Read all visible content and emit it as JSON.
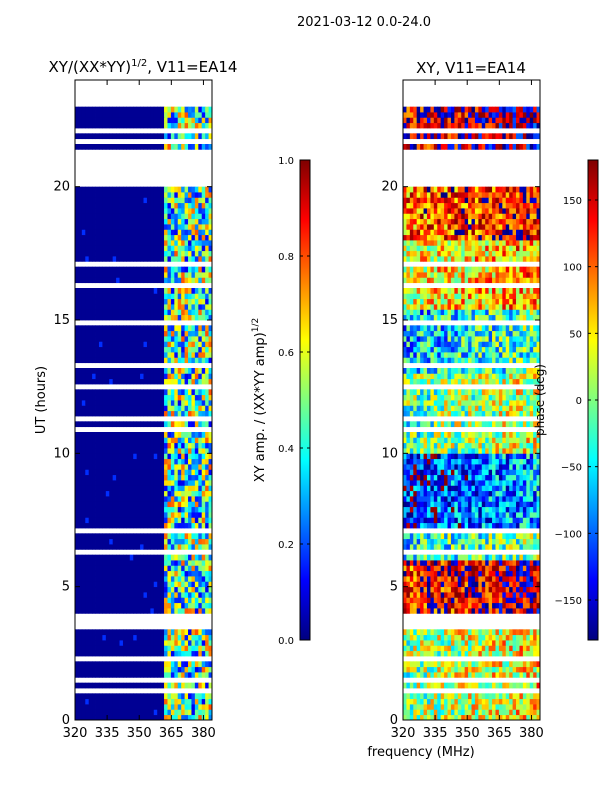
{
  "suptitle": "2021-03-12 0.0-24.0",
  "common_xlabel": "frequency (MHz)",
  "colors": {
    "background": "#ffffff",
    "axis": "#000000",
    "jet": [
      "#00007f",
      "#0000ff",
      "#007fff",
      "#00ffff",
      "#7fff7f",
      "#ffff00",
      "#ff7f00",
      "#ff0000",
      "#7f0000"
    ]
  },
  "chart_data": [
    {
      "type": "heatmap",
      "title": "XY/(XX*YY)",
      "title_exp": "1/2",
      "title_tail": ", V11=EA14",
      "xlabel": "",
      "ylabel": "UT (hours)",
      "xlim": [
        320,
        384
      ],
      "ylim": [
        0,
        24
      ],
      "x_ticks": [
        320,
        335,
        350,
        365,
        380
      ],
      "y_ticks": [
        0,
        5,
        10,
        15,
        20
      ],
      "colorbar": {
        "label": "XY amp. / (XX*YY amp)",
        "label_exp": "1/2",
        "range": [
          0.0,
          1.0
        ],
        "ticks": [
          "0.0",
          "0.2",
          "0.4",
          "0.6",
          "0.8",
          "1.0"
        ]
      },
      "rfi_free_band_mhz": [
        320,
        361
      ],
      "high_value_band_mhz": [
        361,
        384
      ],
      "typical_value_rfi_free": 0.02,
      "typical_value_band": 0.45,
      "data_gaps_ut": [
        [
          0.35,
          0.45
        ],
        [
          1.05,
          1.15
        ],
        [
          1.5,
          1.6
        ],
        [
          2.3,
          2.5
        ],
        [
          2.75,
          2.9
        ],
        [
          3.5,
          4.1
        ],
        [
          4.6,
          4.7
        ],
        [
          5.55,
          5.7
        ],
        [
          6.25,
          6.35
        ],
        [
          7.05,
          7.2
        ],
        [
          7.55,
          7.7
        ],
        [
          8.2,
          8.3
        ],
        [
          9.2,
          9.3
        ],
        [
          10.15,
          10.3
        ],
        [
          10.85,
          10.95
        ],
        [
          11.25,
          11.35
        ],
        [
          11.8,
          11.9
        ],
        [
          12.5,
          12.6
        ],
        [
          13.2,
          13.35
        ],
        [
          14.85,
          15.0
        ],
        [
          15.55,
          15.7
        ],
        [
          16.2,
          16.5
        ],
        [
          17.05,
          17.15
        ],
        [
          17.6,
          17.7
        ],
        [
          18.75,
          18.85
        ],
        [
          19.95,
          21.4
        ],
        [
          21.65,
          21.75
        ],
        [
          22.05,
          22.3
        ],
        [
          23.0,
          24.0
        ]
      ]
    },
    {
      "type": "heatmap",
      "title": "XY, V11=EA14",
      "xlabel": "frequency (MHz)",
      "ylabel": "",
      "xlim": [
        320,
        384
      ],
      "ylim": [
        0,
        24
      ],
      "x_ticks": [
        320,
        335,
        350,
        365,
        380
      ],
      "y_ticks": [
        0,
        5,
        10,
        15,
        20
      ],
      "colorbar": {
        "label": "phase (deg)",
        "range": [
          -180,
          180
        ],
        "ticks": [
          "−150",
          "−100",
          "−50",
          "0",
          "50",
          "100",
          "150"
        ]
      },
      "phase_segments_ut": [
        [
          0,
          3.5,
          30
        ],
        [
          3.5,
          6.0,
          150
        ],
        [
          6.0,
          7.2,
          -20
        ],
        [
          7.2,
          10.0,
          -100
        ],
        [
          10.0,
          13.0,
          10
        ],
        [
          13.0,
          15.5,
          -40
        ],
        [
          15.5,
          18.0,
          60
        ],
        [
          18.0,
          20.0,
          120
        ],
        [
          21.4,
          23.0,
          170
        ]
      ],
      "data_gaps_ut": [
        [
          0.35,
          0.45
        ],
        [
          1.05,
          1.15
        ],
        [
          1.5,
          1.6
        ],
        [
          2.3,
          2.5
        ],
        [
          2.75,
          2.9
        ],
        [
          3.5,
          4.1
        ],
        [
          4.6,
          4.7
        ],
        [
          5.55,
          5.7
        ],
        [
          6.25,
          6.35
        ],
        [
          7.05,
          7.2
        ],
        [
          7.55,
          7.7
        ],
        [
          8.2,
          8.3
        ],
        [
          9.2,
          9.3
        ],
        [
          10.15,
          10.3
        ],
        [
          10.85,
          10.95
        ],
        [
          11.25,
          11.35
        ],
        [
          11.8,
          11.9
        ],
        [
          12.5,
          12.6
        ],
        [
          13.2,
          13.35
        ],
        [
          14.85,
          15.0
        ],
        [
          15.55,
          15.7
        ],
        [
          16.2,
          16.5
        ],
        [
          17.05,
          17.15
        ],
        [
          17.6,
          17.7
        ],
        [
          18.75,
          18.85
        ],
        [
          19.95,
          21.4
        ],
        [
          21.65,
          21.75
        ],
        [
          22.05,
          22.3
        ],
        [
          23.0,
          24.0
        ]
      ]
    }
  ]
}
